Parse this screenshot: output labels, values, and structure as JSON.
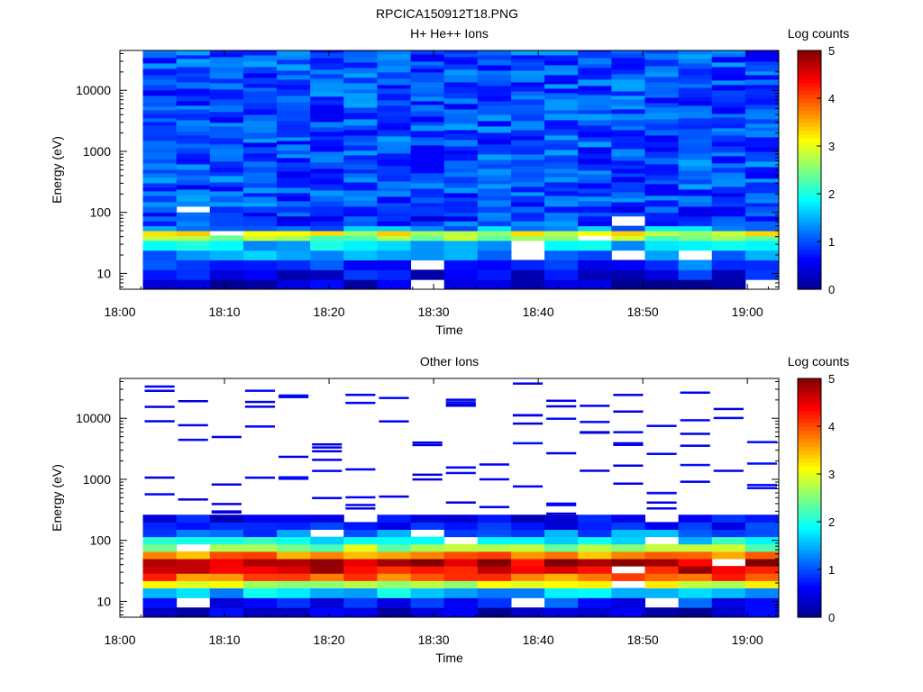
{
  "figure_title": "RPCICA150912T18.PNG",
  "colormap": [
    "#00008f",
    "#0000ff",
    "#007fff",
    "#00ffff",
    "#7fff7f",
    "#ffff00",
    "#ff7f00",
    "#ff0000",
    "#7f0000"
  ],
  "chart_data": [
    {
      "type": "heatmap",
      "title": "H+ He++ Ions",
      "xlabel": "Time",
      "ylabel": "Energy (eV)",
      "xlim_minutes": [
        0,
        63
      ],
      "x_ticks": [
        "18:00",
        "18:10",
        "18:20",
        "18:30",
        "18:40",
        "18:50",
        "19:00"
      ],
      "y_scale": "log",
      "ylim": [
        5.5,
        45000
      ],
      "y_ticks": [
        10,
        100,
        1000,
        10000
      ],
      "y_tick_labels": [
        "10",
        "100",
        "1000",
        "10000"
      ],
      "colorbar": {
        "label": "Log counts",
        "min": 0,
        "max": 5,
        "ticks": [
          "0",
          "1",
          "2",
          "3",
          "4",
          "5"
        ]
      },
      "time_bins_minutes": [
        2.2,
        5.4,
        8.6,
        11.8,
        15.0,
        18.2,
        21.4,
        24.6,
        27.8,
        31.0,
        34.2,
        37.4,
        40.6,
        43.8,
        47.0,
        50.2,
        53.4,
        56.6,
        59.8,
        63.0
      ],
      "energy_profile": {
        "log_energy_edges": [
          0.74,
          0.9,
          1.06,
          1.22,
          1.38,
          1.54,
          1.62,
          1.7,
          1.78,
          1.86,
          1.94,
          2.0,
          2.1,
          4.65
        ],
        "log_counts": [
          0.25,
          0.6,
          0.9,
          1.3,
          1.7,
          2.6,
          3.0,
          1.4,
          1.0,
          0.8,
          0.9,
          0.9,
          0.9
        ]
      },
      "high_energy_background_log_counts": 1.0
    },
    {
      "type": "heatmap",
      "title": "Other Ions",
      "xlabel": "Time",
      "ylabel": "Energy (eV)",
      "xlim_minutes": [
        0,
        63
      ],
      "x_ticks": [
        "18:00",
        "18:10",
        "18:20",
        "18:30",
        "18:40",
        "18:50",
        "19:00"
      ],
      "y_scale": "log",
      "ylim": [
        5.5,
        45000
      ],
      "y_ticks": [
        10,
        100,
        1000,
        10000
      ],
      "y_tick_labels": [
        "10",
        "100",
        "1000",
        "10000"
      ],
      "colorbar": {
        "label": "Log counts",
        "min": 0,
        "max": 5,
        "ticks": [
          "0",
          "1",
          "2",
          "3",
          "4",
          "5"
        ]
      },
      "time_bins_minutes": [
        2.2,
        5.4,
        8.6,
        11.8,
        15.0,
        18.2,
        21.4,
        24.6,
        27.8,
        31.0,
        34.2,
        37.4,
        40.6,
        43.8,
        47.0,
        50.2,
        53.4,
        56.6,
        59.8,
        63.0
      ],
      "energy_profile": {
        "log_energy_edges": [
          0.74,
          0.9,
          1.06,
          1.22,
          1.34,
          1.46,
          1.58,
          1.7,
          1.82,
          1.94,
          2.06,
          2.18,
          2.3,
          2.42
        ],
        "log_counts": [
          0.3,
          0.8,
          1.6,
          2.9,
          3.9,
          4.5,
          4.7,
          3.7,
          2.6,
          1.8,
          1.2,
          0.8,
          0.5
        ]
      },
      "sparse_high_energy_traces_log_counts": 0.4
    }
  ]
}
